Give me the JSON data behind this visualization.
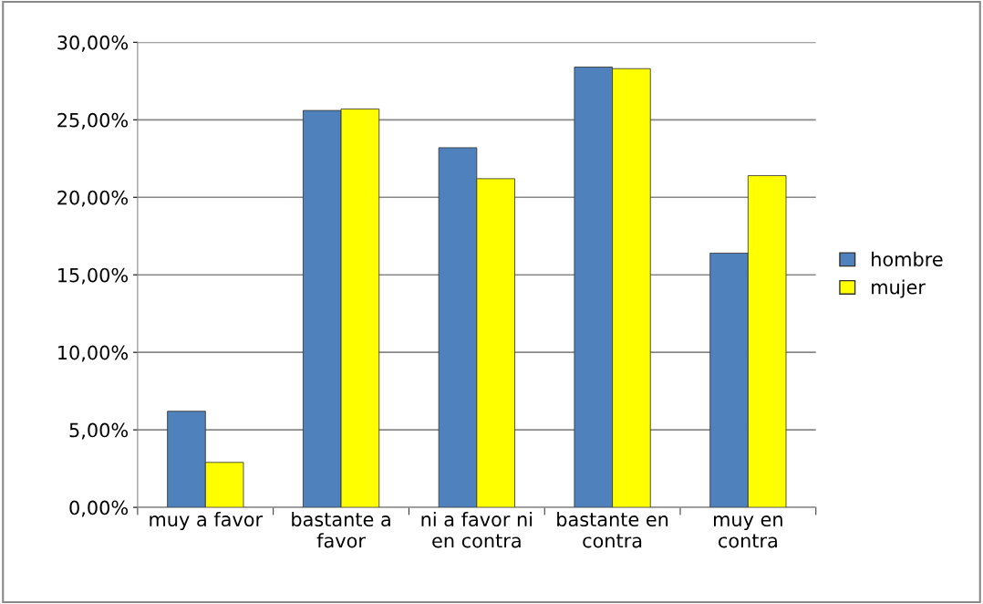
{
  "chart_data": {
    "type": "bar",
    "categories": [
      "muy a favor",
      "bastante a favor",
      "ni a favor ni en contra",
      "bastante en contra",
      "muy en contra"
    ],
    "series": [
      {
        "name": "hombre",
        "color": "#4f81bd",
        "values": [
          6.2,
          25.6,
          23.2,
          28.4,
          16.4
        ]
      },
      {
        "name": "mujer",
        "color": "#ffff00",
        "values": [
          2.9,
          25.7,
          21.2,
          28.3,
          21.4
        ]
      }
    ],
    "ylim": [
      0,
      30
    ],
    "yticks": [
      {
        "value": 0,
        "label": "0,00%"
      },
      {
        "value": 5,
        "label": "5,00%"
      },
      {
        "value": 10,
        "label": "10,00%"
      },
      {
        "value": 15,
        "label": "15,00%"
      },
      {
        "value": 20,
        "label": "20,00%"
      },
      {
        "value": 25,
        "label": "25,00%"
      },
      {
        "value": 30,
        "label": "30,00%"
      }
    ],
    "grid": "y",
    "legend": "right"
  }
}
